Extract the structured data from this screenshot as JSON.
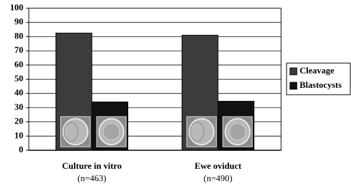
{
  "chart_data": {
    "type": "bar",
    "categories": [
      "Culture in vitro",
      "Ewe oviduct"
    ],
    "category_notes": [
      "(n=463)",
      "(n=490)"
    ],
    "series": [
      {
        "name": "Cleavage",
        "color": "#3c3c3c",
        "values": [
          82.5,
          81
        ]
      },
      {
        "name": "Blastocysts",
        "color": "#111111",
        "values": [
          34,
          34.5
        ]
      }
    ],
    "ylim": [
      0,
      100
    ],
    "yticks": [
      0,
      10,
      20,
      30,
      40,
      50,
      60,
      70,
      80,
      90,
      100
    ],
    "grid": true,
    "legend": "right"
  }
}
